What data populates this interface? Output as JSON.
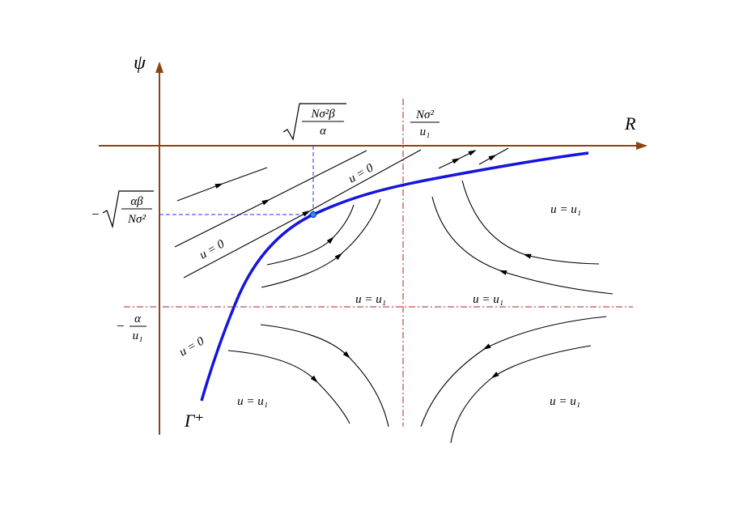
{
  "axes": {
    "vertical": "ψ",
    "horizontal": "R"
  },
  "r_star_label": {
    "numerator": "Nσ²β",
    "denominator": "α"
  },
  "r_asymptote_label": {
    "numerator": "Nσ²",
    "denominator": "u₁"
  },
  "psi_star_label": {
    "sign": "−",
    "numerator": "αβ",
    "denominator": "Nσ²"
  },
  "psi_asymptote_label": {
    "sign": "−",
    "numerator": "α",
    "denominator": "u₁"
  },
  "region_labels": [
    "u = 0",
    "u = 0",
    "u = 0",
    "u = u₁",
    "u = u₁",
    "u = u₁",
    "u = u₁",
    "u = u₁"
  ],
  "curve_label": "Γ⁺"
}
